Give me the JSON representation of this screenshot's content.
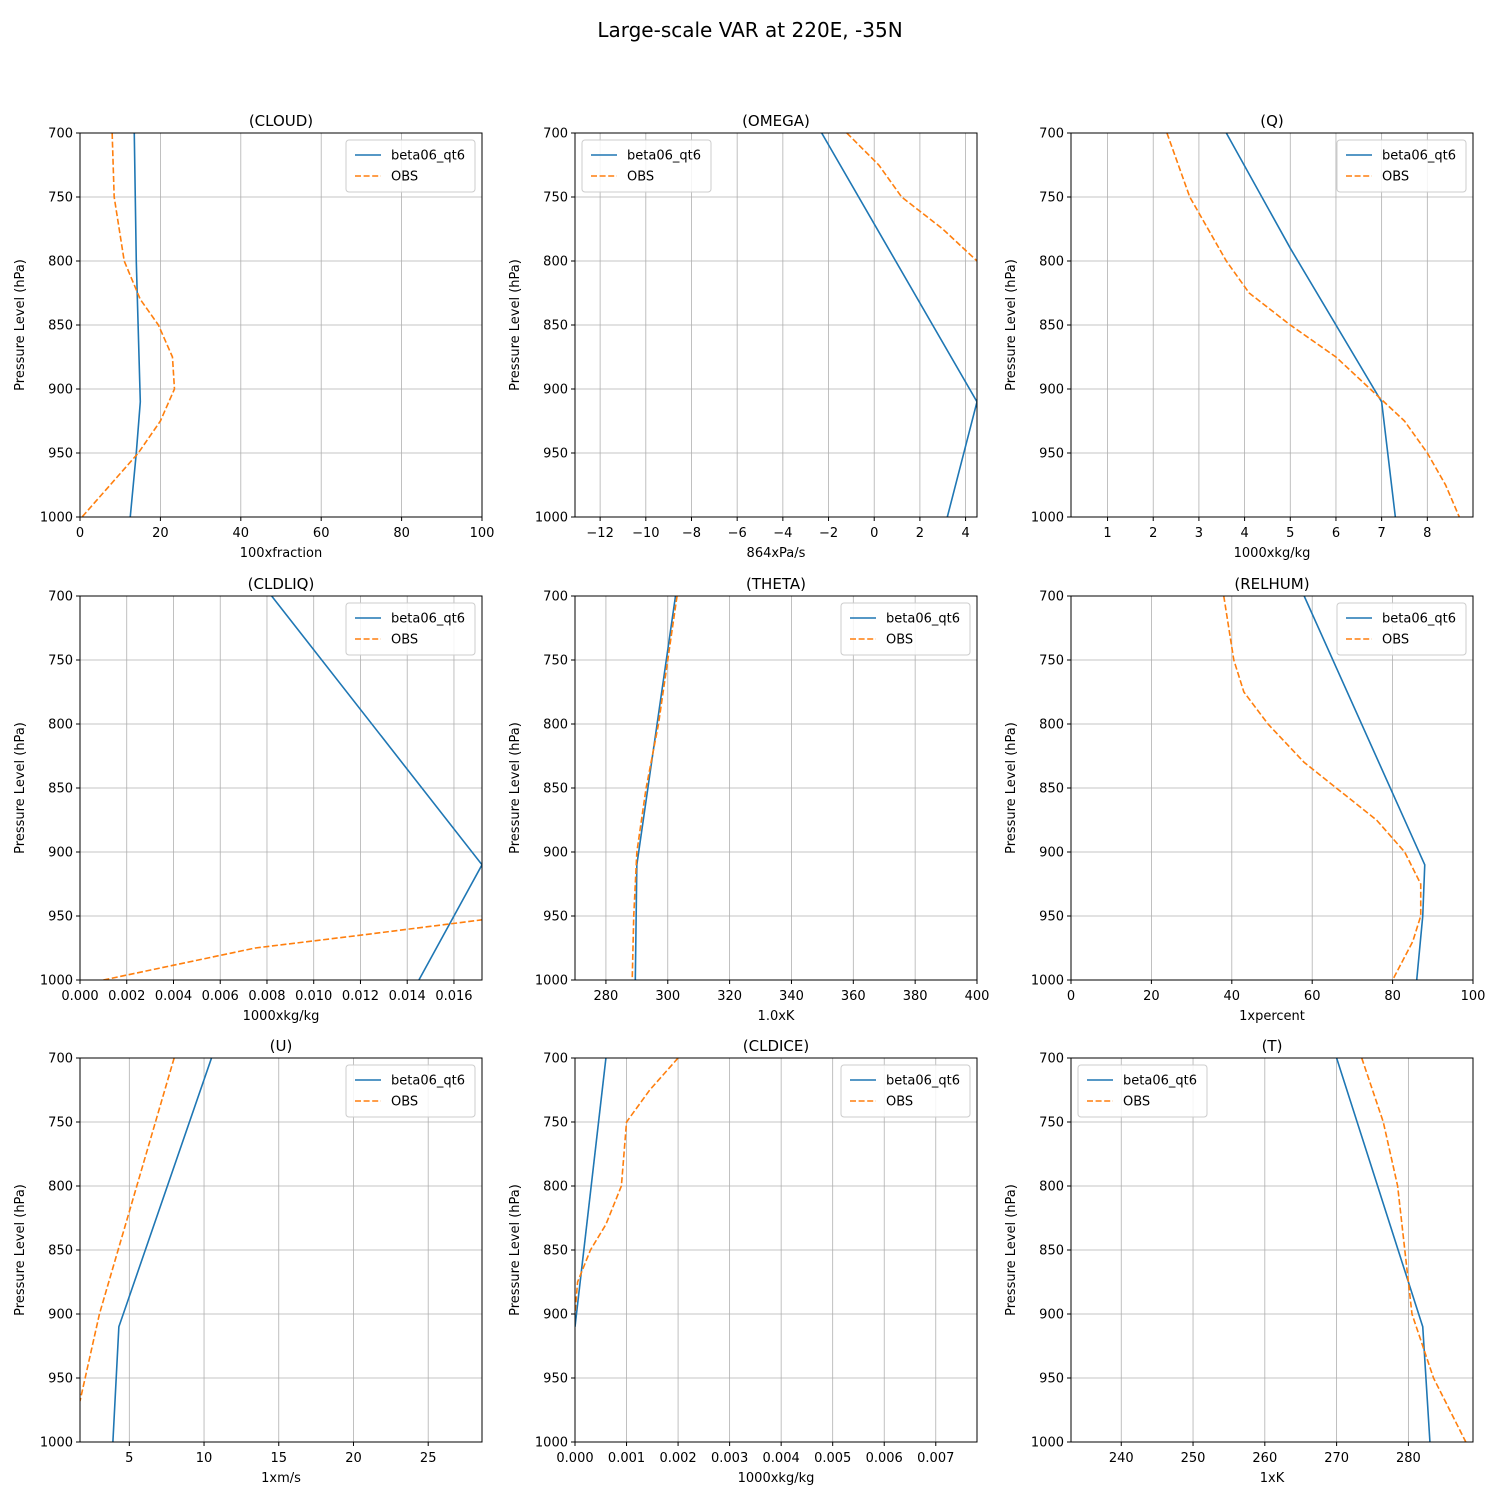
{
  "title": "Large-scale VAR at 220E, -35N",
  "series_styles": [
    {
      "name": "beta06_qt6",
      "color": "#1f77b4",
      "dash": "solid"
    },
    {
      "name": "OBS",
      "color": "#ff7f0e",
      "dash": "dashed"
    }
  ],
  "chart_data": [
    {
      "type": "line",
      "title": "(CLOUD)",
      "xlabel": "100xfraction",
      "ylabel": "Pressure Level (hPa)",
      "xlim": [
        0,
        100
      ],
      "ylim": [
        1000,
        700
      ],
      "xticks": [
        0,
        20,
        40,
        60,
        80,
        100
      ],
      "yticks": [
        700,
        750,
        800,
        850,
        900,
        950,
        1000
      ],
      "grid": true,
      "legend": "upper right",
      "series": [
        {
          "name": "beta06_qt6",
          "points": [
            [
              13.5,
              700
            ],
            [
              14,
              800
            ],
            [
              15,
              910
            ],
            [
              14,
              950
            ],
            [
              12.5,
              1000
            ]
          ]
        },
        {
          "name": "OBS",
          "points": [
            [
              8,
              700
            ],
            [
              8.5,
              750
            ],
            [
              11,
              800
            ],
            [
              15,
              830
            ],
            [
              19.5,
              850
            ],
            [
              23,
              875
            ],
            [
              23.5,
              900
            ],
            [
              20,
              925
            ],
            [
              14.5,
              950
            ],
            [
              7.5,
              975
            ],
            [
              0.5,
              1000
            ]
          ]
        }
      ]
    },
    {
      "type": "line",
      "title": "(OMEGA)",
      "xlabel": "864xPa/s",
      "ylabel": "Pressure Level (hPa)",
      "xlim": [
        -13.1,
        4.5
      ],
      "ylim": [
        1000,
        700
      ],
      "xticks": [
        -12,
        -10,
        -8,
        -6,
        -4,
        -2,
        0,
        2,
        4
      ],
      "yticks": [
        700,
        750,
        800,
        850,
        900,
        950,
        1000
      ],
      "grid": true,
      "legend": "upper left",
      "series": [
        {
          "name": "beta06_qt6",
          "points": [
            [
              -2.3,
              700
            ],
            [
              4.5,
              910
            ],
            [
              3.2,
              1000
            ]
          ]
        },
        {
          "name": "OBS",
          "points": [
            [
              -1.2,
              700
            ],
            [
              0.2,
              725
            ],
            [
              1.2,
              750
            ],
            [
              3,
              775
            ],
            [
              4.5,
              800
            ]
          ]
        }
      ]
    },
    {
      "type": "line",
      "title": "(Q)",
      "xlabel": "1000xkg/kg",
      "ylabel": "Pressure Level (hPa)",
      "xlim": [
        0.2,
        9.0
      ],
      "ylim": [
        1000,
        700
      ],
      "xticks": [
        1,
        2,
        3,
        4,
        5,
        6,
        7,
        8
      ],
      "yticks": [
        700,
        750,
        800,
        850,
        900,
        950,
        1000
      ],
      "grid": true,
      "legend": "upper right",
      "series": [
        {
          "name": "beta06_qt6",
          "points": [
            [
              3.6,
              700
            ],
            [
              5,
              790
            ],
            [
              7,
              910
            ],
            [
              7.3,
              1000
            ]
          ]
        },
        {
          "name": "OBS",
          "points": [
            [
              2.3,
              700
            ],
            [
              2.8,
              750
            ],
            [
              3.2,
              775
            ],
            [
              3.6,
              800
            ],
            [
              4.1,
              825
            ],
            [
              5,
              850
            ],
            [
              6,
              875
            ],
            [
              6.9,
              905
            ],
            [
              7.5,
              925
            ],
            [
              8,
              950
            ],
            [
              8.4,
              975
            ],
            [
              8.7,
              1000
            ]
          ]
        }
      ]
    },
    {
      "type": "line",
      "title": "(CLDLIQ)",
      "xlabel": "1000xkg/kg",
      "ylabel": "Pressure Level (hPa)",
      "xlim": [
        0,
        0.0172
      ],
      "ylim": [
        1000,
        700
      ],
      "xticks": [
        0.0,
        0.002,
        0.004,
        0.006,
        0.008,
        0.01,
        0.012,
        0.014,
        0.016
      ],
      "xtick_labels": [
        "0.000",
        "0.002",
        "0.004",
        "0.006",
        "0.008",
        "0.010",
        "0.012",
        "0.014",
        "0.016"
      ],
      "yticks": [
        700,
        750,
        800,
        850,
        900,
        950,
        1000
      ],
      "grid": true,
      "legend": "upper right",
      "series": [
        {
          "name": "beta06_qt6",
          "points": [
            [
              0.0082,
              700
            ],
            [
              0.0172,
              910
            ],
            [
              0.0145,
              1000
            ]
          ]
        },
        {
          "name": "OBS",
          "points": [
            [
              0.001,
              1000
            ],
            [
              0.0075,
              975
            ],
            [
              0.012,
              965
            ],
            [
              0.0172,
              953
            ]
          ]
        }
      ]
    },
    {
      "type": "line",
      "title": "(THETA)",
      "xlabel": "1.0xK",
      "ylabel": "Pressure Level (hPa)",
      "xlim": [
        270,
        400
      ],
      "ylim": [
        1000,
        700
      ],
      "xticks": [
        280,
        300,
        320,
        340,
        360,
        380,
        400
      ],
      "yticks": [
        700,
        750,
        800,
        850,
        900,
        950,
        1000
      ],
      "grid": true,
      "legend": "upper right",
      "series": [
        {
          "name": "beta06_qt6",
          "points": [
            [
              302.5,
              700
            ],
            [
              290,
              910
            ],
            [
              289.5,
              1000
            ]
          ]
        },
        {
          "name": "OBS",
          "points": [
            [
              303,
              700
            ],
            [
              300,
              750
            ],
            [
              297,
              800
            ],
            [
              293,
              850
            ],
            [
              290,
              900
            ],
            [
              289,
              950
            ],
            [
              288.5,
              1000
            ]
          ]
        }
      ]
    },
    {
      "type": "line",
      "title": "(RELHUM)",
      "xlabel": "1xpercent",
      "ylabel": "Pressure Level (hPa)",
      "xlim": [
        0,
        100
      ],
      "ylim": [
        1000,
        700
      ],
      "xticks": [
        0,
        20,
        40,
        60,
        80,
        100
      ],
      "yticks": [
        700,
        750,
        800,
        850,
        900,
        950,
        1000
      ],
      "grid": true,
      "legend": "upper right",
      "series": [
        {
          "name": "beta06_qt6",
          "points": [
            [
              58,
              700
            ],
            [
              88,
              910
            ],
            [
              87.5,
              950
            ],
            [
              86,
              1000
            ]
          ]
        },
        {
          "name": "OBS",
          "points": [
            [
              38,
              700
            ],
            [
              40.5,
              750
            ],
            [
              43,
              775
            ],
            [
              49,
              800
            ],
            [
              58,
              830
            ],
            [
              68,
              855
            ],
            [
              76,
              875
            ],
            [
              83,
              900
            ],
            [
              87,
              925
            ],
            [
              87,
              950
            ],
            [
              85,
              970
            ],
            [
              80,
              1000
            ]
          ]
        }
      ]
    },
    {
      "type": "line",
      "title": "(U)",
      "xlabel": "1xm/s",
      "ylabel": "Pressure Level (hPa)",
      "xlim": [
        1.7,
        28.6
      ],
      "ylim": [
        1000,
        700
      ],
      "xticks": [
        5,
        10,
        15,
        20,
        25
      ],
      "yticks": [
        700,
        750,
        800,
        850,
        900,
        950,
        1000
      ],
      "grid": true,
      "legend": "upper right",
      "series": [
        {
          "name": "beta06_qt6",
          "points": [
            [
              10.5,
              700
            ],
            [
              4.3,
              910
            ],
            [
              3.9,
              1000
            ]
          ]
        },
        {
          "name": "OBS",
          "points": [
            [
              8,
              700
            ],
            [
              5.5,
              800
            ],
            [
              4,
              860
            ],
            [
              3,
              900
            ],
            [
              1.7,
              968
            ]
          ]
        }
      ]
    },
    {
      "type": "line",
      "title": "(CLDICE)",
      "xlabel": "1000xkg/kg",
      "ylabel": "Pressure Level (hPa)",
      "xlim": [
        0,
        0.0078
      ],
      "ylim": [
        1000,
        700
      ],
      "xticks": [
        0.0,
        0.001,
        0.002,
        0.003,
        0.004,
        0.005,
        0.006,
        0.007
      ],
      "xtick_labels": [
        "0.000",
        "0.001",
        "0.002",
        "0.003",
        "0.004",
        "0.005",
        "0.006",
        "0.007"
      ],
      "yticks": [
        700,
        750,
        800,
        850,
        900,
        950,
        1000
      ],
      "grid": true,
      "legend": "upper right",
      "series": [
        {
          "name": "beta06_qt6",
          "points": [
            [
              0.0006,
              700
            ],
            [
              0.0,
              910
            ]
          ]
        },
        {
          "name": "OBS",
          "points": [
            [
              0.002,
              700
            ],
            [
              0.00145,
              725
            ],
            [
              0.001,
              750
            ],
            [
              0.00095,
              775
            ],
            [
              0.0009,
              800
            ],
            [
              0.0006,
              830
            ],
            [
              0.0003,
              850
            ],
            [
              5e-05,
              875
            ],
            [
              0.0,
              900
            ]
          ]
        }
      ]
    },
    {
      "type": "line",
      "title": "(T)",
      "xlabel": "1xK",
      "ylabel": "Pressure Level (hPa)",
      "xlim": [
        233,
        289
      ],
      "ylim": [
        1000,
        700
      ],
      "xticks": [
        240,
        250,
        260,
        270,
        280
      ],
      "yticks": [
        700,
        750,
        800,
        850,
        900,
        950,
        1000
      ],
      "grid": true,
      "legend": "upper left",
      "series": [
        {
          "name": "beta06_qt6",
          "points": [
            [
              270,
              700
            ],
            [
              282,
              910
            ],
            [
              283,
              1000
            ]
          ]
        },
        {
          "name": "OBS",
          "points": [
            [
              273.5,
              700
            ],
            [
              276.5,
              750
            ],
            [
              278.5,
              800
            ],
            [
              279.5,
              850
            ],
            [
              280.5,
              900
            ],
            [
              283.5,
              950
            ],
            [
              288,
              1000
            ]
          ]
        }
      ]
    }
  ]
}
